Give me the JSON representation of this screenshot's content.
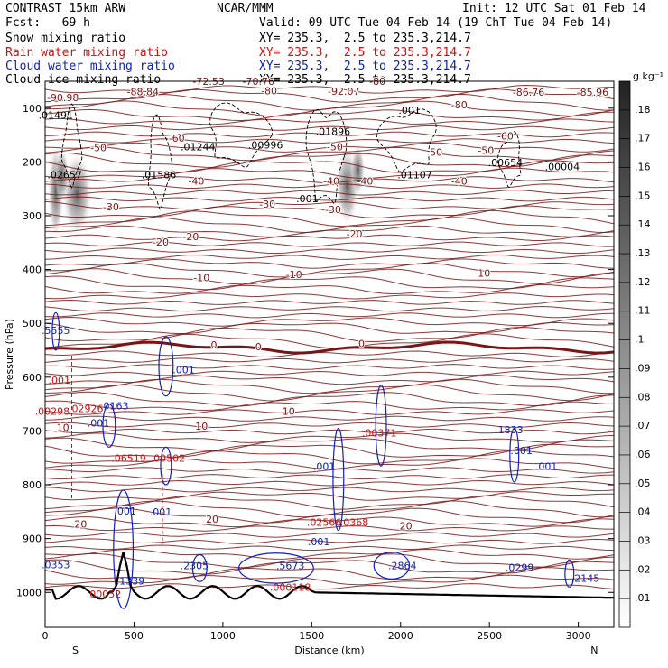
{
  "header": {
    "model": "CONTRAST 15km ARW",
    "center": "NCAR/MMM",
    "init": "Init: 12 UTC Sat 01 Feb 14",
    "fcst": "Fcst:   69 h",
    "valid": "Valid: 09 UTC Tue 04 Feb 14 (19 ChT Tue 04 Feb 14)",
    "fields": [
      {
        "name": "Snow mixing ratio",
        "xy": "XY= 235.3,  2.5 to 235.3,214.7",
        "color": "#000000"
      },
      {
        "name": "Rain water mixing ratio",
        "xy": "XY= 235.3,  2.5 to 235.3,214.7",
        "color": "#d01010"
      },
      {
        "name": "Cloud water mixing ratio",
        "xy": "XY= 235.3,  2.5 to 235.3,214.7",
        "color": "#1020c0"
      },
      {
        "name": "Cloud ice mixing ratio",
        "xy": "XY= 235.3,  2.5 to 235.3,214.7",
        "color": "#000000"
      }
    ]
  },
  "chart_data": {
    "type": "cross-section",
    "xlabel": "Distance (km)",
    "ylabel": "Pressure (hPa)",
    "x_ticks": [
      0,
      500,
      1000,
      1500,
      2000,
      2500,
      3000
    ],
    "y_ticks": [
      100,
      200,
      300,
      400,
      500,
      600,
      700,
      800,
      900,
      1000
    ],
    "xlim": [
      0,
      3200
    ],
    "ylim": [
      50,
      1065
    ],
    "end_labels": {
      "left": "S",
      "right": "N"
    },
    "colorbar": {
      "unit": "g kg⁻¹",
      "levels": [
        ".01",
        ".02",
        ".03",
        ".04",
        ".05",
        ".06",
        ".07",
        ".08",
        ".09",
        ".1",
        ".11",
        ".12",
        ".13",
        ".14",
        ".15",
        ".16",
        ".17",
        ".18"
      ]
    },
    "temperature_contours": {
      "color": "#7a1515",
      "levels": [
        -80,
        -70,
        -60,
        -50,
        -40,
        -30,
        -20,
        -10,
        0,
        10,
        20
      ],
      "labels": [
        {
          "text": "-90.98",
          "x": 100,
          "p": 87
        },
        {
          "text": "-88.84",
          "x": 550,
          "p": 76
        },
        {
          "text": "-72.53",
          "x": 920,
          "p": 57
        },
        {
          "text": "-70.76",
          "x": 1200,
          "p": 57
        },
        {
          "text": "-80",
          "x": 1260,
          "p": 74
        },
        {
          "text": "-92.07",
          "x": 1680,
          "p": 75
        },
        {
          "text": "-80",
          "x": 1870,
          "p": 57
        },
        {
          "text": "-80",
          "x": 2330,
          "p": 100
        },
        {
          "text": "-86.76",
          "x": 2720,
          "p": 77
        },
        {
          "text": "-85.96",
          "x": 3080,
          "p": 77
        },
        {
          "text": "-60",
          "x": 740,
          "p": 162
        },
        {
          "text": "-60",
          "x": 2590,
          "p": 158
        },
        {
          "text": "-50",
          "x": 300,
          "p": 180
        },
        {
          "text": "-50",
          "x": 1630,
          "p": 178
        },
        {
          "text": "-50",
          "x": 2190,
          "p": 188
        },
        {
          "text": "-50",
          "x": 2480,
          "p": 185
        },
        {
          "text": "-40",
          "x": 850,
          "p": 242
        },
        {
          "text": "-40",
          "x": 1610,
          "p": 242
        },
        {
          "text": "-40",
          "x": 1800,
          "p": 242
        },
        {
          "text": "-40",
          "x": 2330,
          "p": 242
        },
        {
          "text": "-30",
          "x": 370,
          "p": 290
        },
        {
          "text": "-30",
          "x": 1250,
          "p": 285
        },
        {
          "text": "-30",
          "x": 1620,
          "p": 295
        },
        {
          "text": "-20",
          "x": 650,
          "p": 355
        },
        {
          "text": "-20",
          "x": 820,
          "p": 345
        },
        {
          "text": "-20",
          "x": 1740,
          "p": 340
        },
        {
          "text": "-10",
          "x": 880,
          "p": 422
        },
        {
          "text": "-10",
          "x": 1400,
          "p": 416
        },
        {
          "text": "-10",
          "x": 2460,
          "p": 413
        },
        {
          "text": "0",
          "x": 950,
          "p": 547
        },
        {
          "text": "0",
          "x": 1200,
          "p": 550
        },
        {
          "text": "0",
          "x": 1780,
          "p": 544
        },
        {
          "text": "10",
          "x": 100,
          "p": 700
        },
        {
          "text": "10",
          "x": 880,
          "p": 698
        },
        {
          "text": "10",
          "x": 1370,
          "p": 670
        },
        {
          "text": "20",
          "x": 200,
          "p": 880
        },
        {
          "text": "20",
          "x": 940,
          "p": 870
        },
        {
          "text": "20",
          "x": 2030,
          "p": 883
        }
      ]
    },
    "cloud_ice_maxima": [
      {
        "text": ".01491",
        "x": 60,
        "p": 120
      },
      {
        "text": ".02657",
        "x": 110,
        "p": 230
      },
      {
        "text": ".01586",
        "x": 640,
        "p": 230
      },
      {
        "text": ".01244",
        "x": 860,
        "p": 178
      },
      {
        "text": ".00996",
        "x": 1240,
        "p": 175
      },
      {
        "text": ".01896",
        "x": 1620,
        "p": 150
      },
      {
        "text": ".001",
        "x": 1475,
        "p": 275
      },
      {
        "text": ".001",
        "x": 2050,
        "p": 110
      },
      {
        "text": ".01107",
        "x": 2080,
        "p": 230
      },
      {
        "text": ".00654",
        "x": 2590,
        "p": 208
      },
      {
        "text": ".00004",
        "x": 2910,
        "p": 215
      }
    ],
    "cloud_water_maxima": [
      {
        "text": ".5555",
        "x": 60,
        "p": 520
      },
      {
        "text": ".001",
        "x": 780,
        "p": 593
      },
      {
        "text": ".0163",
        "x": 390,
        "p": 660
      },
      {
        "text": ".001",
        "x": 300,
        "p": 692
      },
      {
        "text": ".001",
        "x": 1570,
        "p": 772
      },
      {
        "text": ".1833",
        "x": 2610,
        "p": 704
      },
      {
        "text": ".001",
        "x": 2680,
        "p": 743
      },
      {
        "text": ".001",
        "x": 2820,
        "p": 772
      },
      {
        "text": ".001",
        "x": 450,
        "p": 855
      },
      {
        "text": ".001",
        "x": 650,
        "p": 857
      },
      {
        "text": ".0353",
        "x": 60,
        "p": 955
      },
      {
        "text": ".1339",
        "x": 480,
        "p": 985
      },
      {
        "text": ".2305",
        "x": 840,
        "p": 957
      },
      {
        "text": ".5673",
        "x": 1380,
        "p": 957
      },
      {
        "text": ".001",
        "x": 1540,
        "p": 912
      },
      {
        "text": ".2864",
        "x": 2010,
        "p": 957
      },
      {
        "text": ".0299",
        "x": 2670,
        "p": 960
      },
      {
        "text": ".2145",
        "x": 3040,
        "p": 980
      }
    ],
    "rain_water_maxima": [
      {
        "text": ".001",
        "x": 80,
        "p": 612
      },
      {
        "text": ".00298",
        "x": 40,
        "p": 670
      },
      {
        "text": ".02926",
        "x": 230,
        "p": 665
      },
      {
        "text": ".06519",
        "x": 470,
        "p": 757
      },
      {
        "text": ".00502",
        "x": 690,
        "p": 757
      },
      {
        "text": ".00371",
        "x": 1880,
        "p": 710
      },
      {
        "text": ".02566",
        "x": 1570,
        "p": 876
      },
      {
        "text": ".0368",
        "x": 1740,
        "p": 876
      },
      {
        "text": ".00052",
        "x": 330,
        "p": 1010
      },
      {
        "text": ".000118",
        "x": 1380,
        "p": 997
      }
    ]
  }
}
